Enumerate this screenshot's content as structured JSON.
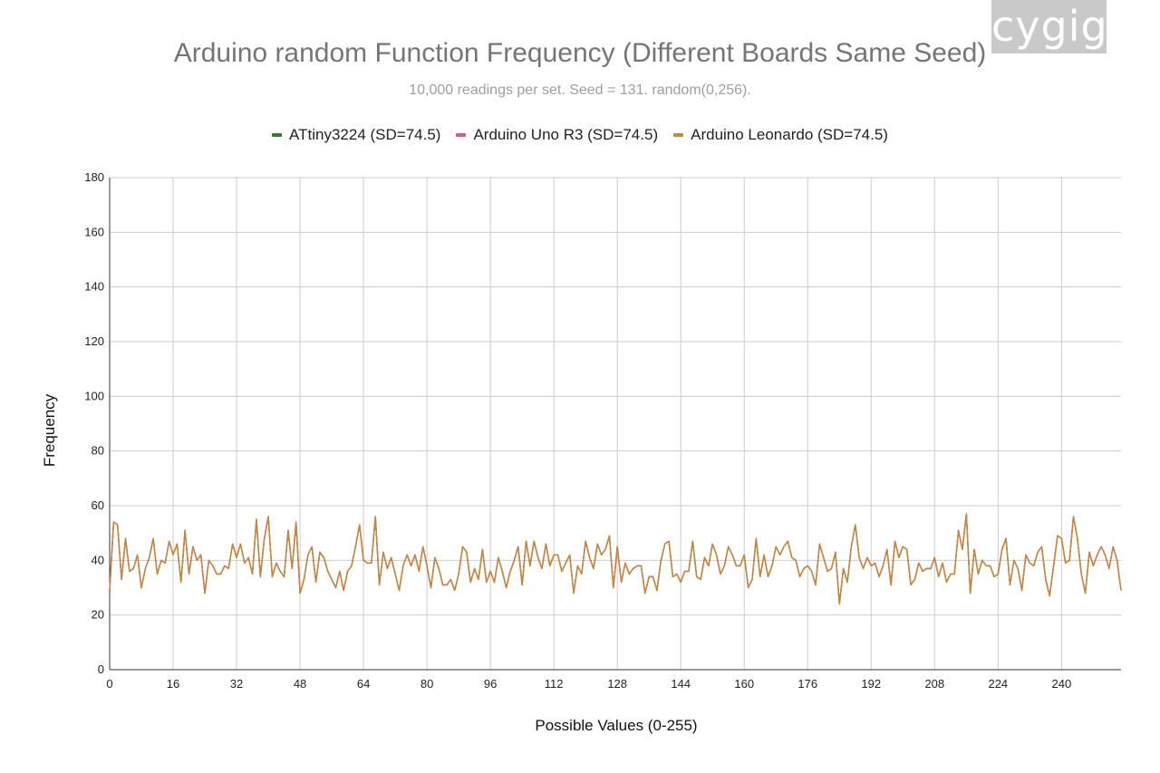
{
  "logo": {
    "text": "cygig"
  },
  "chart_data": {
    "type": "line",
    "title": "Arduino random Function Frequency (Different Boards Same Seed)",
    "subtitle": "10,000 readings per set. Seed = 131. random(0,256).",
    "xlabel": "Possible Values (0-255)",
    "ylabel": "Frequency",
    "xlim": [
      0,
      255
    ],
    "ylim": [
      0,
      180
    ],
    "yticks": [
      0,
      20,
      40,
      60,
      80,
      100,
      120,
      140,
      160,
      180
    ],
    "xticks": [
      0,
      16,
      32,
      48,
      64,
      80,
      96,
      112,
      128,
      144,
      160,
      176,
      192,
      208,
      224,
      240
    ],
    "grid": true,
    "legend_position": "top",
    "x": [
      0,
      1,
      2,
      3,
      4,
      5,
      6,
      7,
      8,
      9,
      10,
      11,
      12,
      13,
      14,
      15,
      16,
      17,
      18,
      19,
      20,
      21,
      22,
      23,
      24,
      25,
      26,
      27,
      28,
      29,
      30,
      31,
      32,
      33,
      34,
      35,
      36,
      37,
      38,
      39,
      40,
      41,
      42,
      43,
      44,
      45,
      46,
      47,
      48,
      49,
      50,
      51,
      52,
      53,
      54,
      55,
      56,
      57,
      58,
      59,
      60,
      61,
      62,
      63,
      64,
      65,
      66,
      67,
      68,
      69,
      70,
      71,
      72,
      73,
      74,
      75,
      76,
      77,
      78,
      79,
      80,
      81,
      82,
      83,
      84,
      85,
      86,
      87,
      88,
      89,
      90,
      91,
      92,
      93,
      94,
      95,
      96,
      97,
      98,
      99,
      100,
      101,
      102,
      103,
      104,
      105,
      106,
      107,
      108,
      109,
      110,
      111,
      112,
      113,
      114,
      115,
      116,
      117,
      118,
      119,
      120,
      121,
      122,
      123,
      124,
      125,
      126,
      127,
      128,
      129,
      130,
      131,
      132,
      133,
      134,
      135,
      136,
      137,
      138,
      139,
      140,
      141,
      142,
      143,
      144,
      145,
      146,
      147,
      148,
      149,
      150,
      151,
      152,
      153,
      154,
      155,
      156,
      157,
      158,
      159,
      160,
      161,
      162,
      163,
      164,
      165,
      166,
      167,
      168,
      169,
      170,
      171,
      172,
      173,
      174,
      175,
      176,
      177,
      178,
      179,
      180,
      181,
      182,
      183,
      184,
      185,
      186,
      187,
      188,
      189,
      190,
      191,
      192,
      193,
      194,
      195,
      196,
      197,
      198,
      199,
      200,
      201,
      202,
      203,
      204,
      205,
      206,
      207,
      208,
      209,
      210,
      211,
      212,
      213,
      214,
      215,
      216,
      217,
      218,
      219,
      220,
      221,
      222,
      223,
      224,
      225,
      226,
      227,
      228,
      229,
      230,
      231,
      232,
      233,
      234,
      235,
      236,
      237,
      238,
      239,
      240,
      241,
      242,
      243,
      244,
      245,
      246,
      247,
      248,
      249,
      250,
      251,
      252,
      253,
      254,
      255
    ],
    "series": [
      {
        "name": "ATtiny3224 (SD=74.5)",
        "color": "#2e7d32",
        "values": [
          29,
          54,
          53,
          33,
          48,
          36,
          37,
          42,
          30,
          37,
          41,
          48,
          35,
          40,
          39,
          47,
          42,
          46,
          32,
          51,
          35,
          45,
          40,
          42,
          28,
          40,
          38,
          35,
          35,
          38,
          37,
          46,
          41,
          46,
          39,
          41,
          35,
          55,
          34,
          48,
          56,
          34,
          39,
          36,
          34,
          51,
          37,
          54,
          28,
          33,
          42,
          45,
          32,
          43,
          41,
          36,
          33,
          30,
          36,
          29,
          36,
          38,
          45,
          53,
          40,
          39,
          39,
          56,
          31,
          43,
          37,
          41,
          35,
          29,
          38,
          42,
          38,
          42,
          36,
          45,
          38,
          30,
          41,
          37,
          31,
          31,
          33,
          29,
          35,
          45,
          43,
          32,
          37,
          33,
          44,
          32,
          36,
          32,
          41,
          36,
          30,
          36,
          40,
          45,
          31,
          47,
          38,
          47,
          41,
          37,
          46,
          38,
          42,
          42,
          36,
          39,
          42,
          28,
          38,
          35,
          47,
          41,
          37,
          46,
          42,
          44,
          49,
          30,
          45,
          32,
          39,
          35,
          37,
          38,
          38,
          28,
          34,
          34,
          29,
          40,
          46,
          47,
          34,
          35,
          32,
          36,
          36,
          47,
          34,
          33,
          41,
          38,
          46,
          42,
          35,
          38,
          45,
          42,
          38,
          38,
          42,
          30,
          33,
          48,
          34,
          42,
          34,
          38,
          45,
          42,
          45,
          47,
          41,
          40,
          34,
          37,
          38,
          36,
          31,
          46,
          41,
          36,
          37,
          43,
          24,
          37,
          32,
          45,
          53,
          41,
          37,
          41,
          38,
          39,
          34,
          38,
          44,
          31,
          47,
          41,
          45,
          44,
          31,
          33,
          39,
          36,
          37,
          37,
          41,
          34,
          39,
          32,
          35,
          35,
          51,
          44,
          57,
          28,
          44,
          35,
          40,
          38,
          38,
          34,
          35,
          44,
          48,
          31,
          40,
          37,
          29,
          42,
          39,
          38,
          43,
          45,
          33,
          27,
          38,
          49,
          48,
          39,
          40,
          56,
          48,
          35,
          28,
          43,
          38,
          42,
          45,
          42,
          37,
          45,
          40,
          29
        ]
      },
      {
        "name": "Arduino Uno R3 (SD=74.5)",
        "color": "#d25a8c",
        "values": [
          29,
          54,
          53,
          33,
          48,
          36,
          37,
          42,
          30,
          37,
          41,
          48,
          35,
          40,
          39,
          47,
          42,
          46,
          32,
          51,
          35,
          45,
          40,
          42,
          28,
          40,
          38,
          35,
          35,
          38,
          37,
          46,
          41,
          46,
          39,
          41,
          35,
          55,
          34,
          48,
          56,
          34,
          39,
          36,
          34,
          51,
          37,
          54,
          28,
          33,
          42,
          45,
          32,
          43,
          41,
          36,
          33,
          30,
          36,
          29,
          36,
          38,
          45,
          53,
          40,
          39,
          39,
          56,
          31,
          43,
          37,
          41,
          35,
          29,
          38,
          42,
          38,
          42,
          36,
          45,
          38,
          30,
          41,
          37,
          31,
          31,
          33,
          29,
          35,
          45,
          43,
          32,
          37,
          33,
          44,
          32,
          36,
          32,
          41,
          36,
          30,
          36,
          40,
          45,
          31,
          47,
          38,
          47,
          41,
          37,
          46,
          38,
          42,
          42,
          36,
          39,
          42,
          28,
          38,
          35,
          47,
          41,
          37,
          46,
          42,
          44,
          49,
          30,
          45,
          32,
          39,
          35,
          37,
          38,
          38,
          28,
          34,
          34,
          29,
          40,
          46,
          47,
          34,
          35,
          32,
          36,
          36,
          47,
          34,
          33,
          41,
          38,
          46,
          42,
          35,
          38,
          45,
          42,
          38,
          38,
          42,
          30,
          33,
          48,
          34,
          42,
          34,
          38,
          45,
          42,
          45,
          47,
          41,
          40,
          34,
          37,
          38,
          36,
          31,
          46,
          41,
          36,
          37,
          43,
          24,
          37,
          32,
          45,
          53,
          41,
          37,
          41,
          38,
          39,
          34,
          38,
          44,
          31,
          47,
          41,
          45,
          44,
          31,
          33,
          39,
          36,
          37,
          37,
          41,
          34,
          39,
          32,
          35,
          35,
          51,
          44,
          57,
          28,
          44,
          35,
          40,
          38,
          38,
          34,
          35,
          44,
          48,
          31,
          40,
          37,
          29,
          42,
          39,
          38,
          43,
          45,
          33,
          27,
          38,
          49,
          48,
          39,
          40,
          56,
          48,
          35,
          28,
          43,
          38,
          42,
          45,
          42,
          37,
          45,
          40,
          29
        ]
      },
      {
        "name": "Arduino Leonardo (SD=74.5)",
        "color": "#c28a3c",
        "values": [
          29,
          54,
          53,
          33,
          48,
          36,
          37,
          42,
          30,
          37,
          41,
          48,
          35,
          40,
          39,
          47,
          42,
          46,
          32,
          51,
          35,
          45,
          40,
          42,
          28,
          40,
          38,
          35,
          35,
          38,
          37,
          46,
          41,
          46,
          39,
          41,
          35,
          55,
          34,
          48,
          56,
          34,
          39,
          36,
          34,
          51,
          37,
          54,
          28,
          33,
          42,
          45,
          32,
          43,
          41,
          36,
          33,
          30,
          36,
          29,
          36,
          38,
          45,
          53,
          40,
          39,
          39,
          56,
          31,
          43,
          37,
          41,
          35,
          29,
          38,
          42,
          38,
          42,
          36,
          45,
          38,
          30,
          41,
          37,
          31,
          31,
          33,
          29,
          35,
          45,
          43,
          32,
          37,
          33,
          44,
          32,
          36,
          32,
          41,
          36,
          30,
          36,
          40,
          45,
          31,
          47,
          38,
          47,
          41,
          37,
          46,
          38,
          42,
          42,
          36,
          39,
          42,
          28,
          38,
          35,
          47,
          41,
          37,
          46,
          42,
          44,
          49,
          30,
          45,
          32,
          39,
          35,
          37,
          38,
          38,
          28,
          34,
          34,
          29,
          40,
          46,
          47,
          34,
          35,
          32,
          36,
          36,
          47,
          34,
          33,
          41,
          38,
          46,
          42,
          35,
          38,
          45,
          42,
          38,
          38,
          42,
          30,
          33,
          48,
          34,
          42,
          34,
          38,
          45,
          42,
          45,
          47,
          41,
          40,
          34,
          37,
          38,
          36,
          31,
          46,
          41,
          36,
          37,
          43,
          24,
          37,
          32,
          45,
          53,
          41,
          37,
          41,
          38,
          39,
          34,
          38,
          44,
          31,
          47,
          41,
          45,
          44,
          31,
          33,
          39,
          36,
          37,
          37,
          41,
          34,
          39,
          32,
          35,
          35,
          51,
          44,
          57,
          28,
          44,
          35,
          40,
          38,
          38,
          34,
          35,
          44,
          48,
          31,
          40,
          37,
          29,
          42,
          39,
          38,
          43,
          45,
          33,
          27,
          38,
          49,
          48,
          39,
          40,
          56,
          48,
          35,
          28,
          43,
          38,
          42,
          45,
          42,
          37,
          45,
          40,
          29
        ]
      }
    ]
  }
}
